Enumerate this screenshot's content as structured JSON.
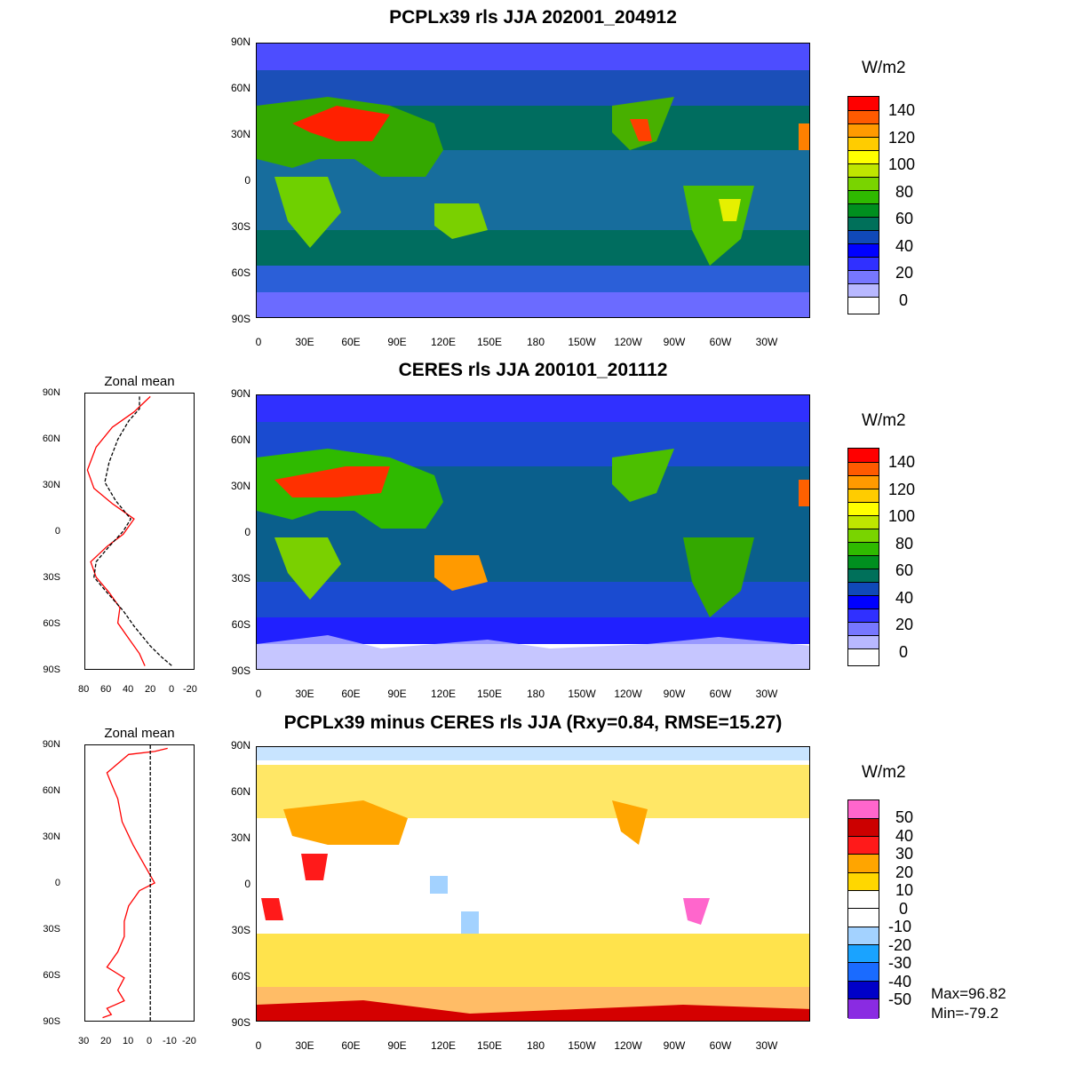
{
  "panel1": {
    "title": "PCPLx39 rls JJA 202001_204912"
  },
  "panel2": {
    "title": "CERES rls JJA 200101_201112",
    "zonal_title": "Zonal mean",
    "zonal_xticks": [
      "80",
      "60",
      "40",
      "20",
      "0",
      "-20"
    ]
  },
  "panel3": {
    "title": "PCPLx39 minus CERES rls JJA (Rxy=0.84, RMSE=15.27)",
    "zonal_title": "Zonal mean",
    "zonal_xticks": [
      "30",
      "20",
      "10",
      "0",
      "-10",
      "-20"
    ],
    "max_text": "Max=96.82",
    "min_text": "Min=-79.2"
  },
  "lat_ticks": [
    "90N",
    "60N",
    "30N",
    "0",
    "30S",
    "60S",
    "90S"
  ],
  "lon_ticks": [
    "0",
    "30E",
    "60E",
    "90E",
    "120E",
    "150E",
    "180",
    "150W",
    "120W",
    "90W",
    "60W",
    "30W"
  ],
  "colorbar_abs": {
    "units": "W/m2",
    "labels": [
      "140",
      "120",
      "100",
      "80",
      "60",
      "40",
      "20",
      "0"
    ],
    "colors": [
      "#ff0000",
      "#ff5a00",
      "#ff9a00",
      "#ffcc00",
      "#ffff00",
      "#bfe600",
      "#79d400",
      "#2fba00",
      "#008f1f",
      "#00705a",
      "#1049b8",
      "#0000ff",
      "#3030ff",
      "#7777ff",
      "#b8b8ff",
      "#ffffff"
    ]
  },
  "colorbar_diff": {
    "units": "W/m2",
    "labels": [
      "50",
      "40",
      "30",
      "20",
      "10",
      "0",
      "-10",
      "-20",
      "-30",
      "-40",
      "-50"
    ],
    "colors": [
      "#ff66cc",
      "#cc0000",
      "#ff1a1a",
      "#ffa500",
      "#ffd700",
      "#ffffff",
      "#ffffff",
      "#a3d2ff",
      "#1aa3ff",
      "#1a6bff",
      "#0000c8",
      "#8a2be2"
    ]
  },
  "chart_data": [
    {
      "type": "line",
      "title": "Zonal mean",
      "xlabel": "",
      "ylabel": "",
      "xlim": [
        80,
        -20
      ],
      "ylim": [
        -90,
        90
      ],
      "series": [
        {
          "color": "#ff0000",
          "points": [
            [
              20,
              88
            ],
            [
              35,
              78
            ],
            [
              55,
              68
            ],
            [
              70,
              55
            ],
            [
              78,
              40
            ],
            [
              72,
              28
            ],
            [
              55,
              18
            ],
            [
              35,
              8
            ],
            [
              45,
              -2
            ],
            [
              60,
              -10
            ],
            [
              75,
              -20
            ],
            [
              70,
              -30
            ],
            [
              58,
              -40
            ],
            [
              48,
              -50
            ],
            [
              50,
              -60
            ],
            [
              40,
              -70
            ],
            [
              30,
              -80
            ],
            [
              25,
              -88
            ]
          ]
        },
        {
          "color": "#000000",
          "points": [
            [
              30,
              88
            ],
            [
              30,
              80
            ],
            [
              40,
              72
            ],
            [
              50,
              60
            ],
            [
              58,
              45
            ],
            [
              62,
              32
            ],
            [
              52,
              20
            ],
            [
              38,
              8
            ],
            [
              45,
              0
            ],
            [
              58,
              -10
            ],
            [
              70,
              -20
            ],
            [
              72,
              -30
            ],
            [
              60,
              -40
            ],
            [
              45,
              -52
            ],
            [
              35,
              -62
            ],
            [
              20,
              -75
            ],
            [
              10,
              -82
            ],
            [
              0,
              -88
            ]
          ]
        }
      ]
    },
    {
      "type": "line",
      "title": "Zonal mean",
      "xlabel": "",
      "ylabel": "",
      "xlim": [
        30,
        -20
      ],
      "ylim": [
        -90,
        90
      ],
      "series": [
        {
          "color": "#ff0000",
          "points": [
            [
              -8,
              88
            ],
            [
              -2,
              86
            ],
            [
              10,
              84
            ],
            [
              20,
              72
            ],
            [
              18,
              65
            ],
            [
              15,
              55
            ],
            [
              13,
              40
            ],
            [
              8,
              25
            ],
            [
              2,
              10
            ],
            [
              -2,
              0
            ],
            [
              5,
              -5
            ],
            [
              10,
              -15
            ],
            [
              12,
              -25
            ],
            [
              12,
              -35
            ],
            [
              15,
              -45
            ],
            [
              20,
              -55
            ],
            [
              12,
              -62
            ],
            [
              15,
              -70
            ],
            [
              12,
              -77
            ],
            [
              20,
              -82
            ],
            [
              18,
              -86
            ],
            [
              22,
              -88
            ]
          ]
        },
        {
          "color": "#000000",
          "points": [
            [
              0,
              90
            ],
            [
              0,
              -90
            ]
          ]
        }
      ]
    }
  ]
}
